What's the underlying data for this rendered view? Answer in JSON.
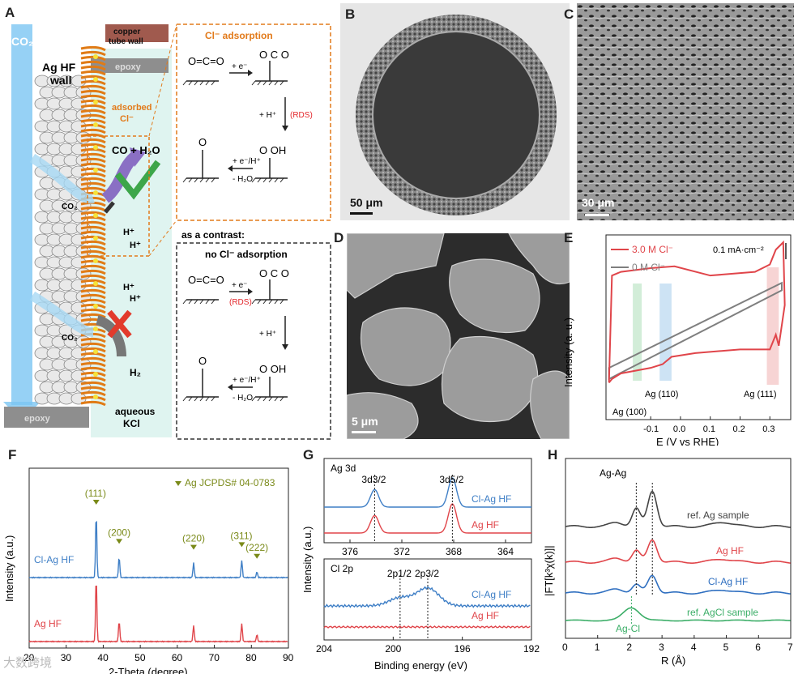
{
  "panelA": {
    "label": "A",
    "co2": "CO₂",
    "ag_hf_wall": [
      "Ag HF",
      "wall"
    ],
    "copper_tube": [
      "copper",
      "tube wall"
    ],
    "epoxy_top": "epoxy",
    "epoxy_bottom": "epoxy",
    "adsorbed": [
      "adsorbed",
      "Cl⁻"
    ],
    "co_h2o": "CO + H₂O",
    "h_plus_1": "H⁺",
    "h_plus_2": "H⁺",
    "h_plus_3": "H⁺",
    "h_plus_4": "H⁺",
    "co2_mid": "CO₂",
    "co2_low": "CO₂",
    "h2": "H₂",
    "electrolyte": [
      "aqueous",
      "KCl"
    ],
    "cl_box_title": "Cl⁻ adsorption",
    "contrast_label": "as a contrast:",
    "no_cl_title": "no Cl⁻ adsorption",
    "step1": "+ e⁻",
    "step2": "+ H⁺",
    "rds": "(RDS)",
    "step3a": "+ e⁻/H⁺",
    "step3b": "- H₂O",
    "oh": "OH"
  },
  "panelB": {
    "label": "B",
    "scale": "50 μm"
  },
  "panelC": {
    "label": "C",
    "scale": "30 μm"
  },
  "panelD": {
    "label": "D",
    "scale": "5 μm"
  },
  "panelE": {
    "label": "E",
    "legend": [
      "3.0 M Cl⁻",
      "0   M Cl⁻"
    ],
    "scalebar": "0.1 mA·cm⁻²",
    "ylabel": "Intensity (a. u.)",
    "xlabel": "E (V vs RHE)",
    "xticks": [
      "-0.1",
      "0.0",
      "0.1",
      "0.2",
      "0.3"
    ],
    "annotations": [
      "Ag (100)",
      "Ag (110)",
      "Ag (111)"
    ],
    "colors": {
      "cl": "#e0454a",
      "nocl": "#7f7f7f"
    }
  },
  "panelF": {
    "label": "F",
    "legend": "Ag  JCPDS# 04-0783",
    "peaks": [
      "(111)",
      "(200)",
      "(220)",
      "(311)",
      "(222)"
    ],
    "series": [
      "Cl-Ag HF",
      "Ag HF"
    ],
    "ylabel": "Intensity (a.u.)",
    "xlabel": "2-Theta (degree)",
    "xticks": [
      "20",
      "30",
      "40",
      "50",
      "60",
      "70",
      "80",
      "90"
    ]
  },
  "panelG": {
    "label": "G",
    "top_title": "Ag 3d",
    "bottom_title": "Cl 2p",
    "top_peaks": [
      "3d3/2",
      "3d5/2"
    ],
    "bottom_peaks": [
      "2p1/2",
      "2p3/2"
    ],
    "series": [
      "Cl-Ag HF",
      "Ag HF"
    ],
    "top_xticks": [
      "376",
      "372",
      "368",
      "364"
    ],
    "bottom_xticks": [
      "204",
      "200",
      "196",
      "192"
    ],
    "ylabel": "Intensity (a.u.)",
    "xlabel": "Binding energy (eV)"
  },
  "panelH": {
    "label": "H",
    "agag": "Ag-Ag",
    "agcl": "Ag-Cl",
    "series": [
      "ref. Ag sample",
      "Ag HF",
      "Cl-Ag HF",
      "ref. AgCl sample"
    ],
    "ylabel": "|FT[k³χ(k)]|",
    "xlabel": "R (Å)",
    "xticks": [
      "0",
      "1",
      "2",
      "3",
      "4",
      "5",
      "6",
      "7"
    ]
  },
  "watermark": "大数跨境",
  "chart_data": [
    {
      "type": "line",
      "title": "",
      "xlabel": "E (V vs RHE)",
      "ylabel": "Intensity (a. u.)",
      "xlim": [
        -0.25,
        0.37
      ],
      "series": [
        {
          "name": "3.0 M Cl⁻",
          "x": [
            -0.24,
            -0.22,
            -0.2,
            -0.15,
            -0.1,
            -0.05,
            0.0,
            0.1,
            0.2,
            0.25,
            0.3,
            0.31,
            0.33,
            0.35
          ],
          "y": [
            0.0,
            0.75,
            0.8,
            0.81,
            0.82,
            0.83,
            0.79,
            0.78,
            0.77,
            0.78,
            0.8,
            0.88,
            0.95,
            0.6
          ]
        },
        {
          "name": "0   M Cl⁻",
          "x": [
            -0.24,
            -0.1,
            0.0,
            0.1,
            0.2,
            0.3,
            0.35
          ],
          "y": [
            0.25,
            0.35,
            0.42,
            0.5,
            0.57,
            0.65,
            0.68
          ]
        }
      ]
    },
    {
      "type": "line",
      "title": "",
      "xlabel": "2-Theta (degree)",
      "ylabel": "Intensity (a.u.)",
      "xlim": [
        20,
        90
      ],
      "peaks_x": [
        38.1,
        44.3,
        64.4,
        77.4,
        81.5
      ],
      "series": [
        {
          "name": "Cl-Ag HF",
          "peak_heights": [
            1.0,
            0.32,
            0.23,
            0.27,
            0.09
          ]
        },
        {
          "name": "Ag HF",
          "peak_heights": [
            1.0,
            0.32,
            0.25,
            0.28,
            0.11
          ]
        }
      ]
    },
    {
      "type": "line",
      "title": "Ag 3d",
      "xlabel": "Binding energy (eV)",
      "xlim": [
        378,
        362
      ],
      "peaks_x": [
        374.1,
        368.1
      ],
      "series": [
        {
          "name": "Cl-Ag HF"
        },
        {
          "name": "Ag HF"
        }
      ]
    },
    {
      "type": "line",
      "title": "Cl 2p",
      "xlabel": "Binding energy (eV)",
      "xlim": [
        204,
        192
      ],
      "peaks_x": [
        199.6,
        198.0
      ],
      "series": [
        {
          "name": "Cl-Ag HF"
        },
        {
          "name": "Ag HF"
        }
      ]
    },
    {
      "type": "line",
      "title": "",
      "xlabel": "R (Å)",
      "ylabel": "|FT[k³χ(k)]|",
      "xlim": [
        0,
        7
      ],
      "series": [
        {
          "name": "ref. Ag sample",
          "peaks": [
            2.2,
            2.7
          ]
        },
        {
          "name": "Ag HF",
          "peaks": [
            2.2,
            2.7
          ]
        },
        {
          "name": "Cl-Ag HF",
          "peaks": [
            2.2,
            2.7
          ]
        },
        {
          "name": "ref. AgCl sample",
          "peaks": [
            2.05
          ]
        }
      ]
    }
  ]
}
